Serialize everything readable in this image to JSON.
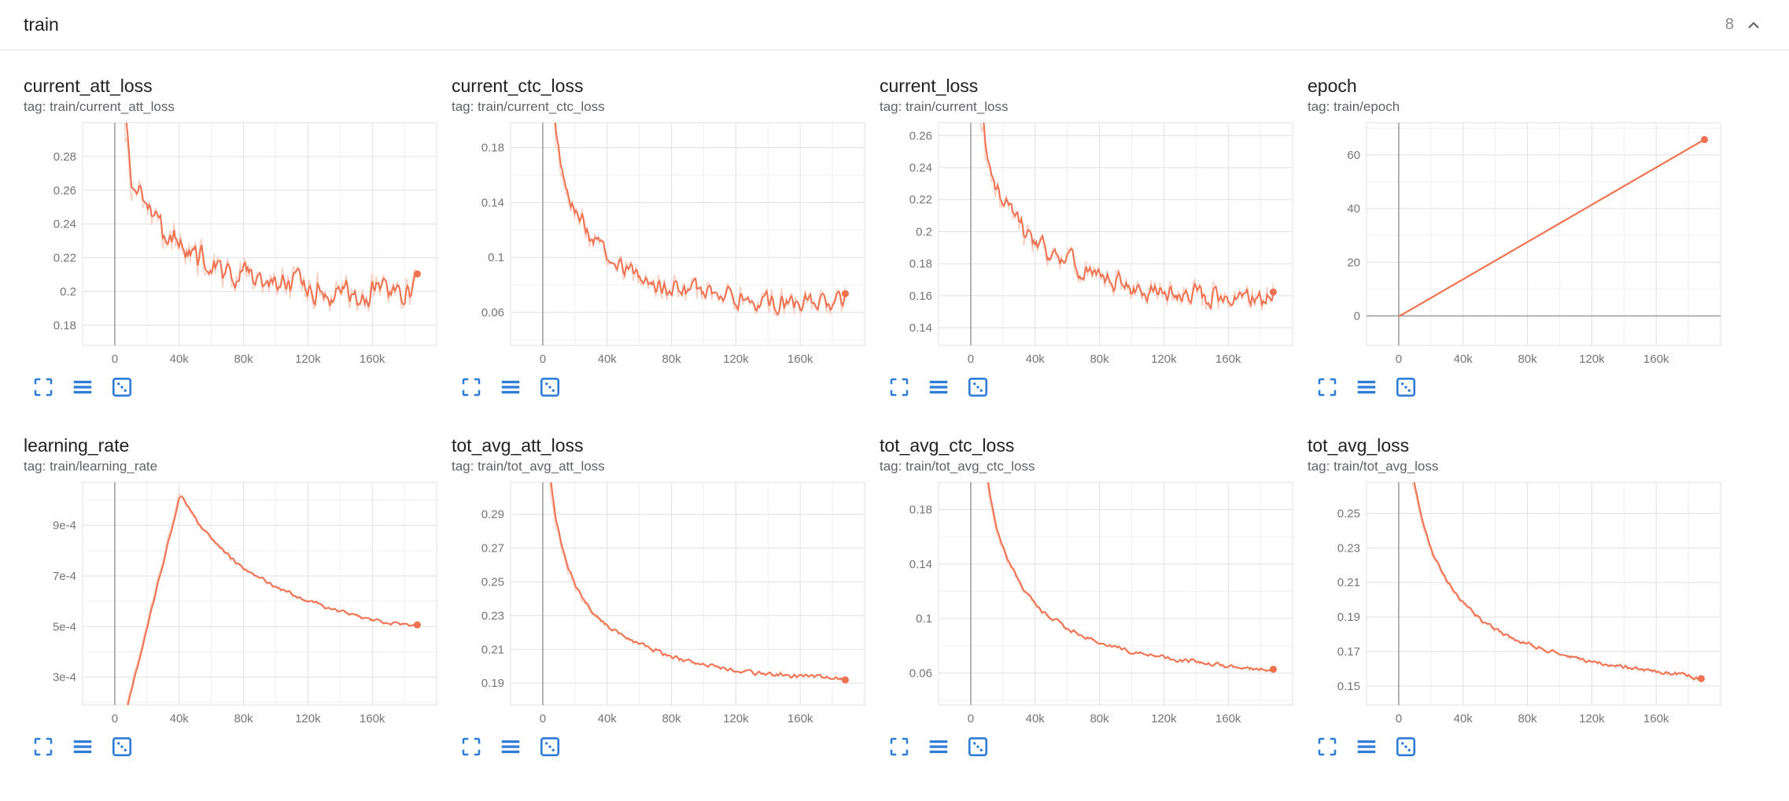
{
  "header": {
    "title": "train",
    "count": "8",
    "collapse_icon": "chevron-up"
  },
  "colors": {
    "accent": "#ef7150",
    "accent_light": "#f9cfc2",
    "icon_blue": "#2e7cd6",
    "grid": "#e0e0e0",
    "grid_minor": "#f0f0f0",
    "axis": "#9a9a9a",
    "tick_text": "#757575"
  },
  "card_actions": [
    "fullscreen-icon",
    "data-lines-icon",
    "fit-domain-icon"
  ],
  "chart_data": [
    {
      "id": "current_att_loss",
      "type": "line",
      "title": "current_att_loss",
      "tag": "tag: train/current_att_loss",
      "x_range": [
        -20000,
        200000
      ],
      "y_range": [
        0.168,
        0.3
      ],
      "x_ticks": [
        {
          "v": 0,
          "label": "0"
        },
        {
          "v": 40000,
          "label": "40k"
        },
        {
          "v": 80000,
          "label": "80k"
        },
        {
          "v": 120000,
          "label": "120k"
        },
        {
          "v": 160000,
          "label": "160k"
        }
      ],
      "x_minor": [
        20000,
        60000,
        100000,
        140000,
        180000
      ],
      "y_ticks": [
        {
          "v": 0.18,
          "label": "0.18"
        },
        {
          "v": 0.2,
          "label": "0.2"
        },
        {
          "v": 0.22,
          "label": "0.22"
        },
        {
          "v": 0.24,
          "label": "0.24"
        },
        {
          "v": 0.26,
          "label": "0.26"
        },
        {
          "v": 0.28,
          "label": "0.28"
        }
      ],
      "x": [
        2000,
        6000,
        10000,
        14000,
        18000,
        24000,
        30000,
        40000,
        50000,
        60000,
        80000,
        100000,
        120000,
        140000,
        160000,
        175000,
        188000
      ],
      "y": [
        0.4,
        0.298,
        0.266,
        0.258,
        0.252,
        0.242,
        0.234,
        0.226,
        0.221,
        0.216,
        0.21,
        0.205,
        0.201,
        0.2,
        0.199,
        0.2,
        0.201
      ],
      "raw_spread": 0.013
    },
    {
      "id": "current_ctc_loss",
      "type": "line",
      "title": "current_ctc_loss",
      "tag": "tag: train/current_ctc_loss",
      "x_range": [
        -20000,
        200000
      ],
      "y_range": [
        0.036,
        0.198
      ],
      "x_ticks": [
        {
          "v": 0,
          "label": "0"
        },
        {
          "v": 40000,
          "label": "40k"
        },
        {
          "v": 80000,
          "label": "80k"
        },
        {
          "v": 120000,
          "label": "120k"
        },
        {
          "v": 160000,
          "label": "160k"
        }
      ],
      "x_minor": [
        20000,
        60000,
        100000,
        140000,
        180000
      ],
      "y_ticks": [
        {
          "v": 0.06,
          "label": "0.06"
        },
        {
          "v": 0.1,
          "label": "0.1"
        },
        {
          "v": 0.14,
          "label": "0.14"
        },
        {
          "v": 0.18,
          "label": "0.18"
        }
      ],
      "y_minor": [
        0.04,
        0.08,
        0.12,
        0.16
      ],
      "x": [
        2000,
        6000,
        10000,
        14000,
        20000,
        26000,
        34000,
        44000,
        56000,
        70000,
        90000,
        110000,
        130000,
        150000,
        170000,
        188000
      ],
      "y": [
        0.3,
        0.205,
        0.168,
        0.152,
        0.134,
        0.122,
        0.109,
        0.098,
        0.09,
        0.082,
        0.076,
        0.072,
        0.069,
        0.067,
        0.066,
        0.068
      ],
      "raw_spread": 0.012
    },
    {
      "id": "current_loss",
      "type": "line",
      "title": "current_loss",
      "tag": "tag: train/current_loss",
      "x_range": [
        -20000,
        200000
      ],
      "y_range": [
        0.129,
        0.268
      ],
      "x_ticks": [
        {
          "v": 0,
          "label": "0"
        },
        {
          "v": 40000,
          "label": "40k"
        },
        {
          "v": 80000,
          "label": "80k"
        },
        {
          "v": 120000,
          "label": "120k"
        },
        {
          "v": 160000,
          "label": "160k"
        }
      ],
      "x_minor": [
        20000,
        60000,
        100000,
        140000,
        180000
      ],
      "y_ticks": [
        {
          "v": 0.14,
          "label": "0.14"
        },
        {
          "v": 0.16,
          "label": "0.16"
        },
        {
          "v": 0.18,
          "label": "0.18"
        },
        {
          "v": 0.2,
          "label": "0.2"
        },
        {
          "v": 0.22,
          "label": "0.22"
        },
        {
          "v": 0.24,
          "label": "0.24"
        },
        {
          "v": 0.26,
          "label": "0.26"
        }
      ],
      "x": [
        2000,
        6000,
        10000,
        14000,
        20000,
        26000,
        34000,
        44000,
        56000,
        70000,
        90000,
        110000,
        130000,
        150000,
        170000,
        188000
      ],
      "y": [
        0.38,
        0.272,
        0.243,
        0.231,
        0.219,
        0.209,
        0.199,
        0.19,
        0.183,
        0.176,
        0.169,
        0.164,
        0.161,
        0.159,
        0.158,
        0.162
      ],
      "raw_spread": 0.011
    },
    {
      "id": "epoch",
      "type": "line",
      "title": "epoch",
      "tag": "tag: train/epoch",
      "x_range": [
        -20000,
        200000
      ],
      "y_range": [
        -11,
        72
      ],
      "x_ticks": [
        {
          "v": 0,
          "label": "0"
        },
        {
          "v": 40000,
          "label": "40k"
        },
        {
          "v": 80000,
          "label": "80k"
        },
        {
          "v": 120000,
          "label": "120k"
        },
        {
          "v": 160000,
          "label": "160k"
        }
      ],
      "x_minor": [
        20000,
        60000,
        100000,
        140000,
        180000
      ],
      "y_ticks": [
        {
          "v": 0,
          "label": "0"
        },
        {
          "v": 20,
          "label": "20"
        },
        {
          "v": 40,
          "label": "40"
        },
        {
          "v": 60,
          "label": "60"
        }
      ],
      "y_minor": [
        10,
        30,
        50,
        70
      ],
      "x": [
        0,
        190000
      ],
      "y": [
        0,
        66
      ],
      "raw_spread": 0
    },
    {
      "id": "learning_rate",
      "type": "line",
      "title": "learning_rate",
      "tag": "tag: train/learning_rate",
      "x_range": [
        -20000,
        200000
      ],
      "y_range": [
        0.00019,
        0.00107
      ],
      "x_ticks": [
        {
          "v": 0,
          "label": "0"
        },
        {
          "v": 40000,
          "label": "40k"
        },
        {
          "v": 80000,
          "label": "80k"
        },
        {
          "v": 120000,
          "label": "120k"
        },
        {
          "v": 160000,
          "label": "160k"
        }
      ],
      "x_minor": [
        20000,
        60000,
        100000,
        140000,
        180000
      ],
      "y_ticks": [
        {
          "v": 0.0003,
          "label": "3e-4"
        },
        {
          "v": 0.0005,
          "label": "5e-4"
        },
        {
          "v": 0.0007,
          "label": "7e-4"
        },
        {
          "v": 0.0009,
          "label": "9e-4"
        }
      ],
      "y_minor": [
        0.0002,
        0.0004,
        0.0006,
        0.0008,
        0.001
      ],
      "x": [
        0,
        5000,
        10000,
        15000,
        20000,
        25000,
        30000,
        35000,
        40000,
        50000,
        60000,
        70000,
        80000,
        90000,
        100000,
        120000,
        140000,
        160000,
        175000,
        188000
      ],
      "y": [
        0,
        0.00013,
        0.00026,
        0.000385,
        0.000515,
        0.00064,
        0.00077,
        0.000895,
        0.001025,
        0.00092,
        0.00084,
        0.00078,
        0.00073,
        0.00069,
        0.000655,
        0.0006,
        0.00056,
        0.000525,
        0.00051,
        0.000502
      ],
      "raw_spread": 1.2e-05
    },
    {
      "id": "tot_avg_att_loss",
      "type": "line",
      "title": "tot_avg_att_loss",
      "tag": "tag: train/tot_avg_att_loss",
      "x_range": [
        -20000,
        200000
      ],
      "y_range": [
        0.177,
        0.309
      ],
      "x_ticks": [
        {
          "v": 0,
          "label": "0"
        },
        {
          "v": 40000,
          "label": "40k"
        },
        {
          "v": 80000,
          "label": "80k"
        },
        {
          "v": 120000,
          "label": "120k"
        },
        {
          "v": 160000,
          "label": "160k"
        }
      ],
      "x_minor": [
        20000,
        60000,
        100000,
        140000,
        180000
      ],
      "y_ticks": [
        {
          "v": 0.19,
          "label": "0.19"
        },
        {
          "v": 0.21,
          "label": "0.21"
        },
        {
          "v": 0.23,
          "label": "0.23"
        },
        {
          "v": 0.25,
          "label": "0.25"
        },
        {
          "v": 0.27,
          "label": "0.27"
        },
        {
          "v": 0.29,
          "label": "0.29"
        }
      ],
      "x": [
        2000,
        5000,
        8000,
        12000,
        16000,
        20000,
        25000,
        30000,
        36000,
        42000,
        50000,
        60000,
        70000,
        80000,
        90000,
        100000,
        110000,
        120000,
        130000,
        140000,
        150000,
        160000,
        170000,
        180000,
        188000
      ],
      "y": [
        0.34,
        0.302,
        0.284,
        0.268,
        0.256,
        0.247,
        0.239,
        0.233,
        0.227,
        0.2225,
        0.2175,
        0.2125,
        0.209,
        0.2055,
        0.2028,
        0.2007,
        0.199,
        0.1975,
        0.1963,
        0.1953,
        0.1947,
        0.194,
        0.1936,
        0.1932,
        0.192
      ],
      "raw_spread": 0.0022
    },
    {
      "id": "tot_avg_ctc_loss",
      "type": "line",
      "title": "tot_avg_ctc_loss",
      "tag": "tag: train/tot_avg_ctc_loss",
      "x_range": [
        -20000,
        200000
      ],
      "y_range": [
        0.0365,
        0.2
      ],
      "x_ticks": [
        {
          "v": 0,
          "label": "0"
        },
        {
          "v": 40000,
          "label": "40k"
        },
        {
          "v": 80000,
          "label": "80k"
        },
        {
          "v": 120000,
          "label": "120k"
        },
        {
          "v": 160000,
          "label": "160k"
        }
      ],
      "x_minor": [
        20000,
        60000,
        100000,
        140000,
        180000
      ],
      "y_ticks": [
        {
          "v": 0.06,
          "label": "0.06"
        },
        {
          "v": 0.1,
          "label": "0.1"
        },
        {
          "v": 0.14,
          "label": "0.14"
        },
        {
          "v": 0.18,
          "label": "0.18"
        }
      ],
      "y_minor": [
        0.04,
        0.08,
        0.12,
        0.16
      ],
      "x": [
        2000,
        5000,
        8000,
        12000,
        16000,
        20000,
        25000,
        30000,
        36000,
        42000,
        50000,
        60000,
        70000,
        80000,
        90000,
        100000,
        110000,
        120000,
        130000,
        140000,
        150000,
        160000,
        170000,
        180000,
        188000
      ],
      "y": [
        0.3,
        0.252,
        0.218,
        0.186,
        0.165,
        0.15,
        0.136,
        0.126,
        0.116,
        0.108,
        0.1,
        0.0925,
        0.087,
        0.0825,
        0.0788,
        0.0755,
        0.0733,
        0.071,
        0.0695,
        0.068,
        0.0665,
        0.0652,
        0.064,
        0.063,
        0.0618
      ],
      "raw_spread": 0.0025
    },
    {
      "id": "tot_avg_loss",
      "type": "line",
      "title": "tot_avg_loss",
      "tag": "tag: train/tot_avg_loss",
      "x_range": [
        -20000,
        200000
      ],
      "y_range": [
        0.139,
        0.268
      ],
      "x_ticks": [
        {
          "v": 0,
          "label": "0"
        },
        {
          "v": 40000,
          "label": "40k"
        },
        {
          "v": 80000,
          "label": "80k"
        },
        {
          "v": 120000,
          "label": "120k"
        },
        {
          "v": 160000,
          "label": "160k"
        }
      ],
      "x_minor": [
        20000,
        60000,
        100000,
        140000,
        180000
      ],
      "y_ticks": [
        {
          "v": 0.15,
          "label": "0.15"
        },
        {
          "v": 0.17,
          "label": "0.17"
        },
        {
          "v": 0.19,
          "label": "0.19"
        },
        {
          "v": 0.21,
          "label": "0.21"
        },
        {
          "v": 0.23,
          "label": "0.23"
        },
        {
          "v": 0.25,
          "label": "0.25"
        }
      ],
      "x": [
        2000,
        5000,
        8000,
        12000,
        16000,
        20000,
        25000,
        30000,
        36000,
        42000,
        50000,
        60000,
        70000,
        80000,
        90000,
        100000,
        110000,
        120000,
        130000,
        140000,
        150000,
        160000,
        170000,
        180000,
        188000
      ],
      "y": [
        0.33,
        0.292,
        0.271,
        0.253,
        0.24,
        0.2285,
        0.2185,
        0.2105,
        0.2025,
        0.196,
        0.1888,
        0.1823,
        0.1778,
        0.174,
        0.171,
        0.1685,
        0.1663,
        0.1645,
        0.1628,
        0.1613,
        0.1597,
        0.1583,
        0.157,
        0.1558,
        0.153
      ],
      "raw_spread": 0.0022
    }
  ]
}
